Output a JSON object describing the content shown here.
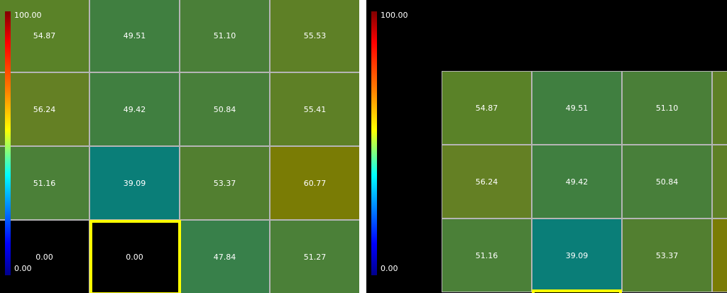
{
  "left_panel": {
    "colorbar": {
      "max": "100.00",
      "min": "0.00"
    },
    "rows": [
      [
        {
          "text": "54.87",
          "color": "#5a8228"
        },
        {
          "text": "49.51",
          "color": "#407f40"
        },
        {
          "text": "51.10",
          "color": "#4a7f38"
        },
        {
          "text": "55.53",
          "color": "#5e8026"
        }
      ],
      [
        {
          "text": "56.24",
          "color": "#648024"
        },
        {
          "text": "49.42",
          "color": "#407f40"
        },
        {
          "text": "50.84",
          "color": "#487f3a"
        },
        {
          "text": "55.41",
          "color": "#5e8026"
        }
      ],
      [
        {
          "text": "51.16",
          "color": "#4b8038"
        },
        {
          "text": "39.09",
          "color": "#0a7e78"
        },
        {
          "text": "53.37",
          "color": "#527f30"
        },
        {
          "text": "60.77",
          "color": "#7a7c05"
        }
      ],
      [
        {
          "text": "0.00",
          "color": "#000000"
        },
        {
          "text": "0.00",
          "color": "#000000"
        },
        {
          "text": "47.84",
          "color": "#38804a"
        },
        {
          "text": "51.27",
          "color": "#4b8038"
        }
      ]
    ]
  },
  "right_panel": {
    "colorbar": {
      "max": "100.00",
      "min": "0.00"
    },
    "rows": [
      [
        {
          "text": "54.87",
          "color": "#5a8228"
        },
        {
          "text": "49.51",
          "color": "#407f40"
        },
        {
          "text": "51.10",
          "color": "#4a7f38"
        }
      ],
      [
        {
          "text": "56.24",
          "color": "#648024"
        },
        {
          "text": "49.42",
          "color": "#407f40"
        },
        {
          "text": "50.84",
          "color": "#487f3a"
        }
      ],
      [
        {
          "text": "51.16",
          "color": "#4b8038"
        },
        {
          "text": "39.09",
          "color": "#0a7e78"
        },
        {
          "text": "53.37",
          "color": "#527f30"
        }
      ]
    ]
  }
}
